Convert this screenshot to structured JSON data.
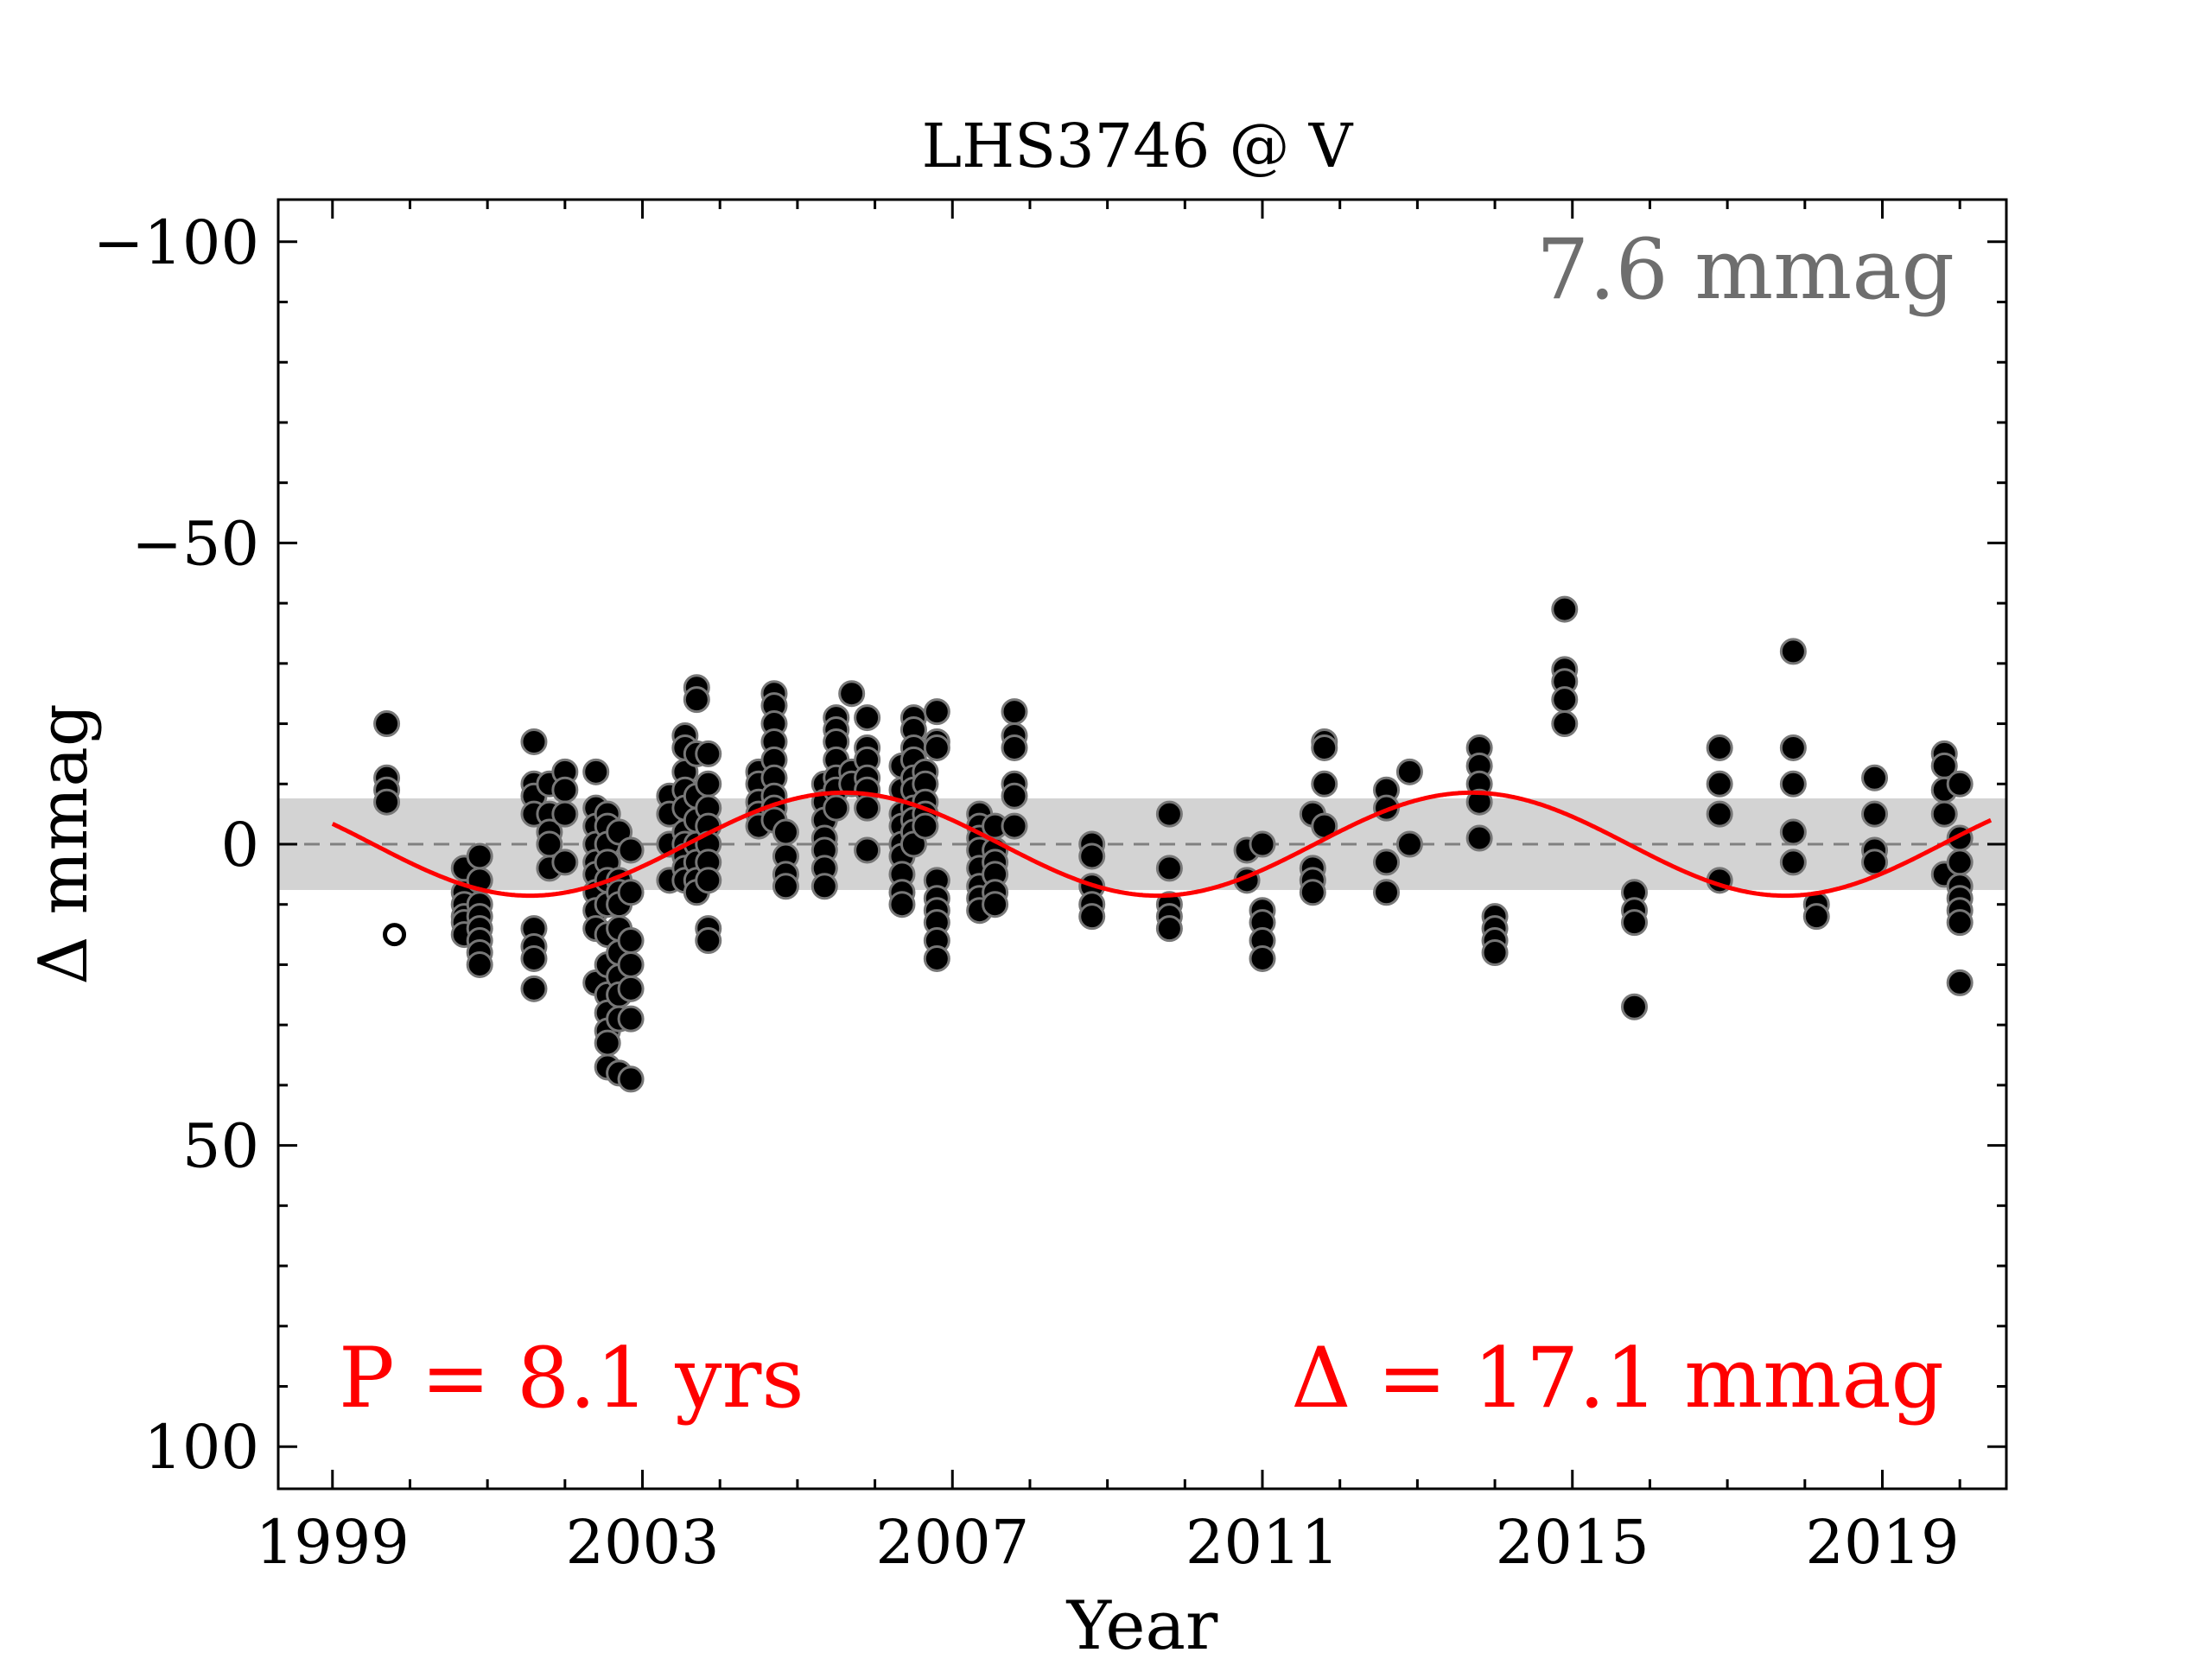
{
  "chart_data": {
    "type": "scatter",
    "title": "LHS3746 @ V",
    "xlabel": "Year",
    "ylabel": "Δ  mmag",
    "xlim": [
      1998.3,
      2020.6
    ],
    "ylim": [
      -107,
      107
    ],
    "y_inverted": true,
    "x_ticks": [
      1999,
      2003,
      2007,
      2011,
      2015,
      2019
    ],
    "y_ticks": [
      -100,
      -50,
      0,
      50,
      100
    ],
    "y_tick_labels": [
      "−100",
      "−50",
      "0",
      "50",
      "100"
    ],
    "grid": false,
    "scatter_rms_mmag": 7.6,
    "annotations": {
      "rms": "7.6 mmag",
      "period": "P = 8.1 yrs",
      "amplitude": "Δ = 17.1 mmag"
    },
    "sine_fit": {
      "period_years": 8.1,
      "semi_amplitude_mmag": 8.55,
      "peak_brightness_year": 2013.7
    },
    "colors": {
      "points": "#000000",
      "point_edge": "#777777",
      "fit": "#ff0000",
      "band": "#d3d3d3",
      "zero_line": "#808080",
      "rms_text": "#6e6e6e",
      "fit_text": "#ff0000"
    },
    "nights": [
      {
        "x": 1999.7,
        "y": [
          -20,
          -11,
          -9,
          -7
        ]
      },
      {
        "x": 2000.7,
        "y": [
          4,
          8,
          10,
          12,
          13,
          15
        ]
      },
      {
        "x": 2000.9,
        "y": [
          2,
          6,
          10,
          12,
          14,
          16,
          18,
          20
        ]
      },
      {
        "x": 2001.6,
        "y": [
          -17,
          -10,
          -8,
          -5,
          14,
          17,
          19,
          24
        ]
      },
      {
        "x": 2001.8,
        "y": [
          -10,
          -5,
          -2,
          0,
          4
        ]
      },
      {
        "x": 2002.0,
        "y": [
          -12,
          -9,
          -5,
          3
        ]
      },
      {
        "x": 2002.4,
        "y": [
          -12,
          -6,
          -3,
          0,
          3,
          5,
          8,
          11,
          14,
          23
        ]
      },
      {
        "x": 2002.55,
        "y": [
          -5,
          -3,
          0,
          3,
          6,
          10,
          15,
          20,
          25,
          28,
          31,
          33,
          37
        ]
      },
      {
        "x": 2002.7,
        "y": [
          -2,
          6,
          8,
          10,
          14,
          18,
          22,
          25,
          29,
          38
        ]
      },
      {
        "x": 2002.85,
        "y": [
          1,
          8,
          16,
          20,
          24,
          29,
          39
        ]
      },
      {
        "x": 2003.35,
        "y": [
          -8,
          -5,
          0,
          6
        ]
      },
      {
        "x": 2003.55,
        "y": [
          -18,
          -16,
          -12,
          -9,
          -6,
          -2,
          0,
          2,
          4,
          6
        ]
      },
      {
        "x": 2003.7,
        "y": [
          -26,
          -24,
          -15,
          -8,
          -4,
          0,
          3,
          6,
          8
        ]
      },
      {
        "x": 2003.85,
        "y": [
          -15,
          -10,
          -6,
          -3,
          0,
          3,
          6,
          14,
          16
        ]
      },
      {
        "x": 2004.5,
        "y": [
          -12,
          -10,
          -7,
          -5,
          -3
        ]
      },
      {
        "x": 2004.7,
        "y": [
          -25,
          -23,
          -20,
          -17,
          -14,
          -11,
          -8,
          -6,
          -4
        ]
      },
      {
        "x": 2004.85,
        "y": [
          -2,
          2,
          5,
          7
        ]
      },
      {
        "x": 2005.35,
        "y": [
          -10,
          -7,
          -4,
          -1,
          1,
          4,
          7
        ]
      },
      {
        "x": 2005.5,
        "y": [
          -21,
          -19,
          -17,
          -14,
          -11,
          -9,
          -6
        ]
      },
      {
        "x": 2005.7,
        "y": [
          -25,
          -12,
          -10
        ]
      },
      {
        "x": 2005.9,
        "y": [
          -21,
          -16,
          -14,
          -11,
          -9,
          -6,
          1
        ]
      },
      {
        "x": 2006.35,
        "y": [
          -13,
          -9,
          -5,
          -3,
          0,
          2,
          5,
          8,
          10
        ]
      },
      {
        "x": 2006.5,
        "y": [
          -21,
          -19,
          -16,
          -14,
          -11,
          -9,
          -6,
          -4,
          -2,
          0
        ]
      },
      {
        "x": 2006.65,
        "y": [
          -12,
          -10,
          -7,
          -5,
          -3
        ]
      },
      {
        "x": 2006.8,
        "y": [
          -22,
          -17,
          -16,
          6,
          9,
          11,
          13,
          16,
          19
        ]
      },
      {
        "x": 2007.35,
        "y": [
          -5,
          -3,
          -1,
          1,
          4,
          7,
          9,
          11
        ]
      },
      {
        "x": 2007.55,
        "y": [
          -3,
          1,
          3,
          5,
          8,
          10
        ]
      },
      {
        "x": 2007.8,
        "y": [
          -22,
          -18,
          -16,
          -10,
          -8,
          -3
        ]
      },
      {
        "x": 2008.8,
        "y": [
          0,
          2,
          7,
          10,
          12
        ]
      },
      {
        "x": 2009.8,
        "y": [
          -5,
          4,
          10,
          12,
          14
        ]
      },
      {
        "x": 2010.8,
        "y": [
          1,
          6
        ]
      },
      {
        "x": 2011.0,
        "y": [
          0,
          11,
          13,
          16,
          19
        ]
      },
      {
        "x": 2011.65,
        "y": [
          -5,
          4,
          6,
          8
        ]
      },
      {
        "x": 2011.8,
        "y": [
          -17,
          -16,
          -10,
          -3
        ]
      },
      {
        "x": 2012.6,
        "y": [
          -9,
          -6,
          3,
          8
        ]
      },
      {
        "x": 2012.9,
        "y": [
          -12,
          0
        ]
      },
      {
        "x": 2013.8,
        "y": [
          -16,
          -13,
          -10,
          -7,
          -1
        ]
      },
      {
        "x": 2014.0,
        "y": [
          12,
          14,
          16,
          18
        ]
      },
      {
        "x": 2014.9,
        "y": [
          -39,
          -29,
          -27,
          -24,
          -20
        ]
      },
      {
        "x": 2015.8,
        "y": [
          8,
          11,
          13,
          27
        ]
      },
      {
        "x": 2016.9,
        "y": [
          -16,
          -10,
          -5,
          6
        ]
      },
      {
        "x": 2017.85,
        "y": [
          -32,
          -16,
          -10,
          -2,
          3
        ]
      },
      {
        "x": 2018.15,
        "y": [
          10,
          12
        ]
      },
      {
        "x": 2018.9,
        "y": [
          -11,
          -5,
          1,
          3
        ]
      },
      {
        "x": 2019.8,
        "y": [
          -15,
          -13,
          -9,
          -5,
          5
        ]
      },
      {
        "x": 2020.0,
        "y": [
          -10,
          -1,
          3,
          7,
          9,
          11,
          13,
          23
        ]
      }
    ],
    "outliers": [
      {
        "x": 1999.8,
        "y": 15
      }
    ]
  }
}
